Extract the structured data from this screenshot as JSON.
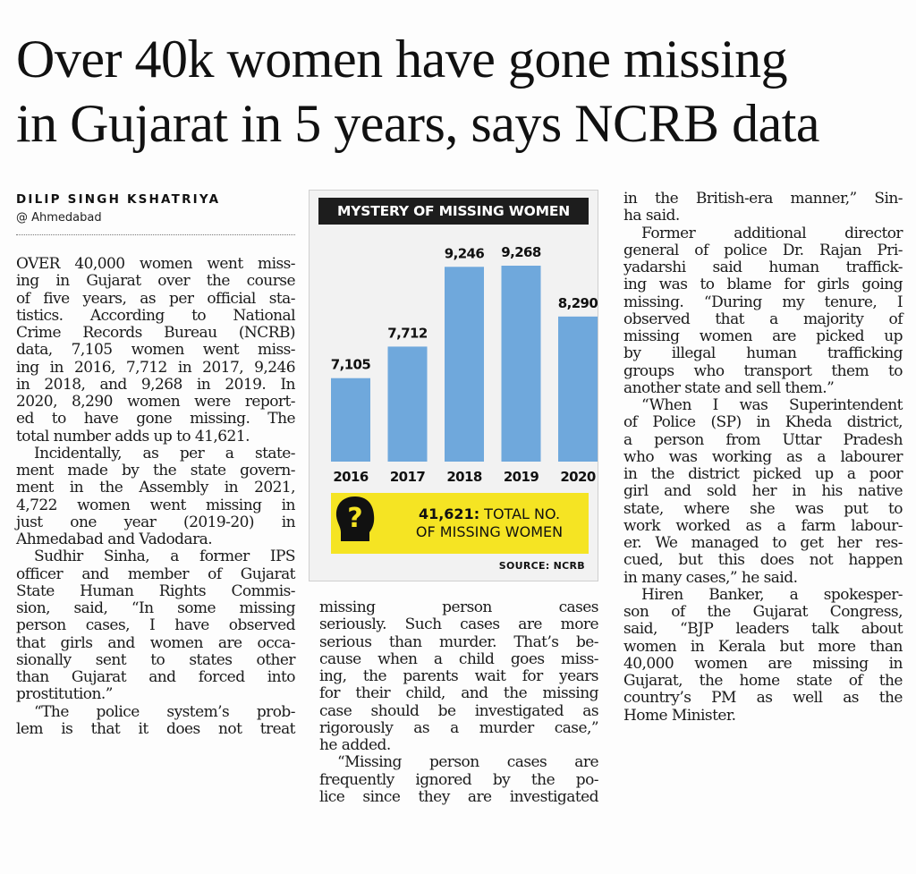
{
  "headline": {
    "line1": "Over 40k women have gone missing",
    "line2": "in Gujarat in 5 years, says NCRB data"
  },
  "byline": "DILIP SINGH KSHATRIYA",
  "dateline": "@ Ahmedabad",
  "column1": [
    {
      "text": "OVER 40,000 women went miss-",
      "i": false,
      "j": true
    },
    {
      "text": "ing in Gujarat over the course",
      "i": false,
      "j": true
    },
    {
      "text": "of five years, as per official sta-",
      "i": false,
      "j": true
    },
    {
      "text": "tistics. According to National",
      "i": false,
      "j": true
    },
    {
      "text": "Crime Records Bureau (NCRB)",
      "i": false,
      "j": true
    },
    {
      "text": "data, 7,105 women went miss-",
      "i": false,
      "j": true
    },
    {
      "text": "ing in 2016, 7,712 in 2017, 9,246",
      "i": false,
      "j": true
    },
    {
      "text": "in 2018, and 9,268 in 2019. In",
      "i": false,
      "j": true
    },
    {
      "text": "2020, 8,290 women were report-",
      "i": false,
      "j": true
    },
    {
      "text": "ed to have gone missing. The",
      "i": false,
      "j": true
    },
    {
      "text": "total number adds up to 41,621.",
      "i": false,
      "j": false
    },
    {
      "text": "Incidentally, as per a state-",
      "i": true,
      "j": true
    },
    {
      "text": "ment made by the state govern-",
      "i": false,
      "j": true
    },
    {
      "text": "ment in the Assembly in 2021,",
      "i": false,
      "j": true
    },
    {
      "text": "4,722 women went missing in",
      "i": false,
      "j": true
    },
    {
      "text": "just one year (2019-20) in",
      "i": false,
      "j": true
    },
    {
      "text": "Ahmedabad and Vadodara.",
      "i": false,
      "j": false
    },
    {
      "text": "Sudhir Sinha, a former IPS",
      "i": true,
      "j": true
    },
    {
      "text": "officer and member of Gujarat",
      "i": false,
      "j": true
    },
    {
      "text": "State Human Rights Commis-",
      "i": false,
      "j": true
    },
    {
      "text": "sion, said, “In some missing",
      "i": false,
      "j": true
    },
    {
      "text": "person cases, I have observed",
      "i": false,
      "j": true
    },
    {
      "text": "that girls and women are occa-",
      "i": false,
      "j": true
    },
    {
      "text": "sionally sent to states other",
      "i": false,
      "j": true
    },
    {
      "text": "than Gujarat and forced into",
      "i": false,
      "j": true
    },
    {
      "text": "prostitution.”",
      "i": false,
      "j": false
    },
    {
      "text": "“The police system’s prob-",
      "i": true,
      "j": true
    },
    {
      "text": "lem is that it does not treat",
      "i": false,
      "j": true
    }
  ],
  "column2": [
    {
      "text": "missing person cases",
      "i": false,
      "j": true
    },
    {
      "text": "seriously. Such cases are more",
      "i": false,
      "j": true
    },
    {
      "text": "serious than murder. That’s be-",
      "i": false,
      "j": true
    },
    {
      "text": "cause when a child goes miss-",
      "i": false,
      "j": true
    },
    {
      "text": "ing, the parents wait for years",
      "i": false,
      "j": true
    },
    {
      "text": "for their child, and the missing",
      "i": false,
      "j": true
    },
    {
      "text": "case should be investigated as",
      "i": false,
      "j": true
    },
    {
      "text": "rigorously as a murder case,”",
      "i": false,
      "j": true
    },
    {
      "text": "he added.",
      "i": false,
      "j": false
    },
    {
      "text": "“Missing person cases are",
      "i": true,
      "j": true
    },
    {
      "text": "frequently ignored by the po-",
      "i": false,
      "j": true
    },
    {
      "text": "lice since they are investigated",
      "i": false,
      "j": true
    }
  ],
  "column3": [
    {
      "text": "in the British-era manner,” Sin-",
      "i": false,
      "j": true
    },
    {
      "text": "ha said.",
      "i": false,
      "j": false
    },
    {
      "text": "Former additional director",
      "i": true,
      "j": true
    },
    {
      "text": "general of police Dr. Rajan Pri-",
      "i": false,
      "j": true
    },
    {
      "text": "yadarshi said human traffick-",
      "i": false,
      "j": true
    },
    {
      "text": "ing was to blame for girls going",
      "i": false,
      "j": true
    },
    {
      "text": "missing. “During my tenure, I",
      "i": false,
      "j": true
    },
    {
      "text": "observed that a majority of",
      "i": false,
      "j": true
    },
    {
      "text": "missing women are picked up",
      "i": false,
      "j": true
    },
    {
      "text": "by illegal human trafficking",
      "i": false,
      "j": true
    },
    {
      "text": "groups who transport them to",
      "i": false,
      "j": true
    },
    {
      "text": "another state and sell them.”",
      "i": false,
      "j": false
    },
    {
      "text": "“When I was Superintendent",
      "i": true,
      "j": true
    },
    {
      "text": "of Police (SP) in Kheda district,",
      "i": false,
      "j": true
    },
    {
      "text": "a person from Uttar Pradesh",
      "i": false,
      "j": true
    },
    {
      "text": "who was working as a labourer",
      "i": false,
      "j": true
    },
    {
      "text": "in the district picked up a poor",
      "i": false,
      "j": true
    },
    {
      "text": "girl and sold her in his native",
      "i": false,
      "j": true
    },
    {
      "text": "state, where she was put to",
      "i": false,
      "j": true
    },
    {
      "text": "work worked as a farm labour-",
      "i": false,
      "j": true
    },
    {
      "text": "er. We managed to get her res-",
      "i": false,
      "j": true
    },
    {
      "text": "cued, but this does not happen",
      "i": false,
      "j": true
    },
    {
      "text": "in many cases,” he said.",
      "i": false,
      "j": false
    },
    {
      "text": "Hiren Banker, a spokesper-",
      "i": true,
      "j": true
    },
    {
      "text": "son of the Gujarat Congress,",
      "i": false,
      "j": true
    },
    {
      "text": "said, “BJP leaders talk about",
      "i": false,
      "j": true
    },
    {
      "text": "women in Kerala but more than",
      "i": false,
      "j": true
    },
    {
      "text": "40,000 women are missing in",
      "i": false,
      "j": true
    },
    {
      "text": "Gujarat, the home state of the",
      "i": false,
      "j": true
    },
    {
      "text": "country’s PM as well as the",
      "i": false,
      "j": true
    },
    {
      "text": "Home Minister.",
      "i": false,
      "j": false
    }
  ],
  "infographic": {
    "title": "MYSTERY OF MISSING WOMEN",
    "callout_number": "41,621:",
    "callout_rest1": " TOTAL NO.",
    "callout_rest2": "OF MISSING WOMEN",
    "source": "SOURCE: NCRB",
    "icon": "question-head-icon"
  },
  "chart_data": {
    "type": "bar",
    "title": "MYSTERY OF MISSING WOMEN",
    "categories": [
      "2016",
      "2017",
      "2018",
      "2019",
      "2020"
    ],
    "values": [
      7105,
      7712,
      9246,
      9268,
      8290
    ],
    "labels": [
      "7,105",
      "7,712",
      "9,246",
      "9,268",
      "8,290"
    ],
    "bar_color": "#6fa8dc",
    "xlabel": "",
    "ylabel": ""
  },
  "colors": {
    "bar": "#6fa8dc",
    "callout": "#f5e423",
    "title_bg": "#1d1d1d"
  }
}
